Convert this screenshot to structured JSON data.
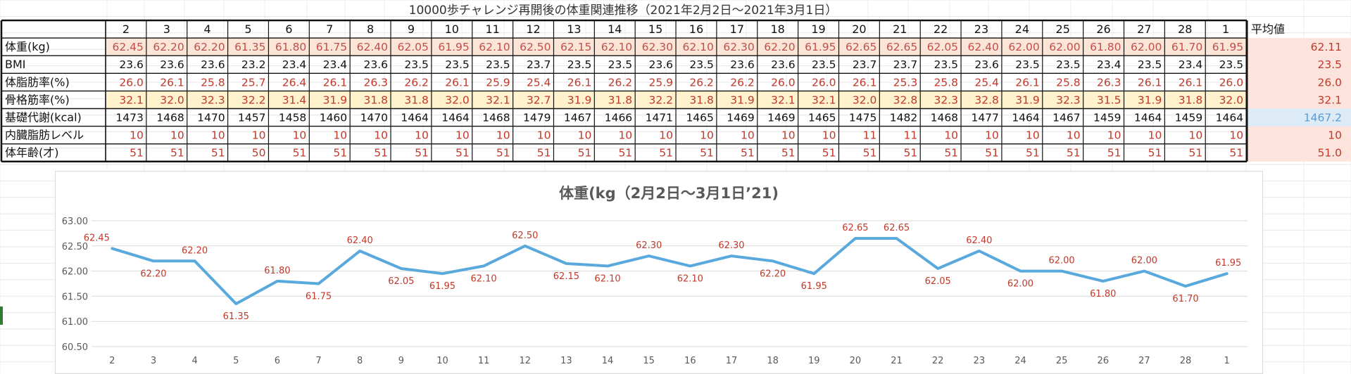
{
  "sheet": {
    "title": "10000歩チャレンジ再開後の体重関連推移（2021年2月2日〜2021年3月1日）",
    "days": [
      "2",
      "3",
      "4",
      "5",
      "6",
      "7",
      "8",
      "9",
      "10",
      "11",
      "12",
      "13",
      "14",
      "15",
      "16",
      "17",
      "18",
      "19",
      "20",
      "21",
      "22",
      "23",
      "24",
      "25",
      "26",
      "27",
      "28",
      "1"
    ],
    "average_label": "平均値",
    "rows": [
      {
        "label": "体重(kg)",
        "tone": "orange",
        "values": [
          "62.45",
          "62.20",
          "62.20",
          "61.35",
          "61.80",
          "61.75",
          "62.40",
          "62.05",
          "61.95",
          "62.10",
          "62.50",
          "62.15",
          "62.10",
          "62.30",
          "62.10",
          "62.30",
          "62.20",
          "61.95",
          "62.65",
          "62.65",
          "62.05",
          "62.40",
          "62.00",
          "62.00",
          "61.80",
          "62.00",
          "61.70",
          "61.95"
        ],
        "average": "62.11"
      },
      {
        "label": "BMI",
        "tone": "black",
        "values": [
          "23.6",
          "23.6",
          "23.6",
          "23.2",
          "23.4",
          "23.4",
          "23.6",
          "23.5",
          "23.5",
          "23.5",
          "23.7",
          "23.5",
          "23.5",
          "23.6",
          "23.5",
          "23.6",
          "23.6",
          "23.5",
          "23.7",
          "23.7",
          "23.5",
          "23.6",
          "23.5",
          "23.5",
          "23.4",
          "23.5",
          "23.4",
          "23.5"
        ],
        "average": "23.5"
      },
      {
        "label": "体脂肪率(%)",
        "tone": "red",
        "values": [
          "26.0",
          "26.1",
          "25.8",
          "25.7",
          "26.4",
          "26.1",
          "26.3",
          "26.2",
          "26.1",
          "25.9",
          "25.4",
          "26.1",
          "26.2",
          "25.9",
          "26.2",
          "26.2",
          "26.0",
          "26.0",
          "26.1",
          "25.3",
          "25.8",
          "25.4",
          "26.1",
          "25.8",
          "26.3",
          "26.1",
          "26.1",
          "26.0"
        ],
        "average": "26.0"
      },
      {
        "label": "骨格筋率(%)",
        "tone": "yellow",
        "values": [
          "32.1",
          "32.0",
          "32.3",
          "32.2",
          "31.4",
          "31.9",
          "31.8",
          "31.8",
          "32.0",
          "32.1",
          "32.7",
          "31.9",
          "31.8",
          "32.2",
          "31.8",
          "31.9",
          "32.1",
          "32.1",
          "32.0",
          "32.8",
          "32.3",
          "32.8",
          "31.9",
          "32.3",
          "31.5",
          "31.9",
          "31.8",
          "32.0"
        ],
        "average": "32.1"
      },
      {
        "label": "基礎代謝(kcal)",
        "tone": "black",
        "values": [
          "1473",
          "1468",
          "1470",
          "1457",
          "1458",
          "1460",
          "1470",
          "1464",
          "1464",
          "1468",
          "1479",
          "1467",
          "1466",
          "1471",
          "1465",
          "1469",
          "1469",
          "1465",
          "1475",
          "1482",
          "1468",
          "1477",
          "1464",
          "1467",
          "1459",
          "1464",
          "1459",
          "1464"
        ],
        "average": "1467.2"
      },
      {
        "label": "内臓脂肪レベル",
        "tone": "red",
        "values": [
          "10",
          "10",
          "10",
          "10",
          "10",
          "10",
          "10",
          "10",
          "10",
          "10",
          "10",
          "10",
          "10",
          "10",
          "10",
          "10",
          "10",
          "10",
          "11",
          "11",
          "10",
          "10",
          "10",
          "10",
          "10",
          "10",
          "10",
          "10"
        ],
        "average": "10"
      },
      {
        "label": "体年齢(才)",
        "tone": "red",
        "values": [
          "51",
          "51",
          "51",
          "50",
          "51",
          "51",
          "51",
          "51",
          "51",
          "51",
          "51",
          "51",
          "51",
          "51",
          "51",
          "51",
          "51",
          "51",
          "51",
          "51",
          "51",
          "51",
          "51",
          "51",
          "51",
          "51",
          "51",
          "51"
        ],
        "average": "51.0"
      }
    ]
  },
  "colors": {
    "value_orange": "#c0504d",
    "value_red": "#c0392b",
    "row_orange_bg": "#fbe5d6",
    "row_yellow_bg": "#fff2cc",
    "avg_pink_bg": "#fce4dc",
    "avg_blue_bg": "#ddebf7",
    "avg_blue_text": "#5b9bd5",
    "line": "#5aa9dd",
    "label": "#c0392b",
    "gridline": "#d9d9d9"
  },
  "chart_data": {
    "type": "line",
    "title": "体重(kg（2月2日〜3月1日’21)",
    "x": [
      "2",
      "3",
      "4",
      "5",
      "6",
      "7",
      "8",
      "9",
      "10",
      "11",
      "12",
      "13",
      "14",
      "15",
      "16",
      "17",
      "18",
      "19",
      "20",
      "21",
      "22",
      "23",
      "24",
      "25",
      "26",
      "27",
      "28",
      "1"
    ],
    "series": [
      {
        "values": [
          62.45,
          62.2,
          62.2,
          61.35,
          61.8,
          61.75,
          62.4,
          62.05,
          61.95,
          62.1,
          62.5,
          62.15,
          62.1,
          62.3,
          62.1,
          62.3,
          62.2,
          61.95,
          62.65,
          62.65,
          62.05,
          62.4,
          62.0,
          62.0,
          61.8,
          62.0,
          61.7,
          61.95
        ]
      }
    ],
    "data_labels": [
      "62.45",
      "62.20",
      "62.20",
      "61.35",
      "61.80",
      "61.75",
      "62.40",
      "62.05",
      "61.95",
      "62.10",
      "62.50",
      "62.15",
      "62.10",
      "62.30",
      "62.10",
      "62.30",
      "62.20",
      "61.95",
      "62.65",
      "62.65",
      "62.05",
      "62.40",
      "62.00",
      "62.00",
      "61.80",
      "62.00",
      "61.70",
      "61.95"
    ],
    "y_ticks": [
      "63.00",
      "62.50",
      "62.00",
      "61.50",
      "61.00",
      "60.50"
    ],
    "ylim": [
      60.5,
      63.0
    ],
    "grid": true,
    "legend": "none"
  }
}
